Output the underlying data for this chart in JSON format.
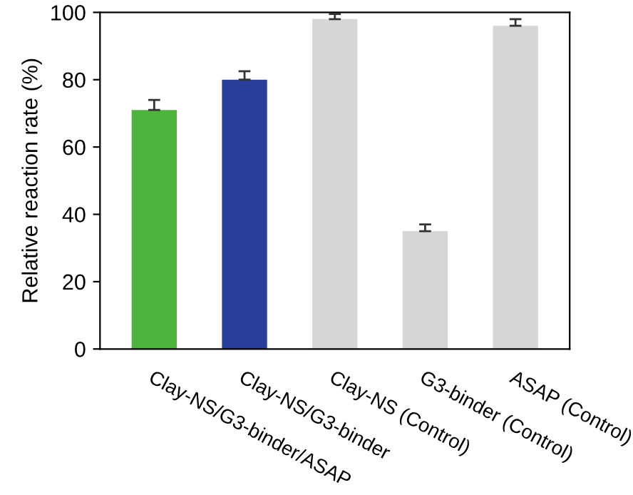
{
  "chart_data": {
    "type": "bar",
    "ylabel": "Relative reaction rate (%)",
    "categories": [
      "Clay-NS/G3-binder/ASAP",
      "Clay-NS/G3-binder",
      "Clay-NS (Control)",
      "G3-binder (Control)",
      "ASAP (Control)"
    ],
    "values": [
      71,
      80,
      98,
      35,
      96
    ],
    "errors": [
      [
        71,
        74
      ],
      [
        80,
        82.5
      ],
      [
        98,
        99.5
      ],
      [
        35,
        37
      ],
      [
        96,
        98
      ]
    ],
    "colors": [
      "#4db33d",
      "#2a3f9a",
      "#d6d6d6",
      "#d6d6d6",
      "#d6d6d6"
    ],
    "ylim": [
      0,
      100
    ],
    "yticks": [
      0,
      20,
      40,
      60,
      80,
      100
    ],
    "grid": false
  }
}
